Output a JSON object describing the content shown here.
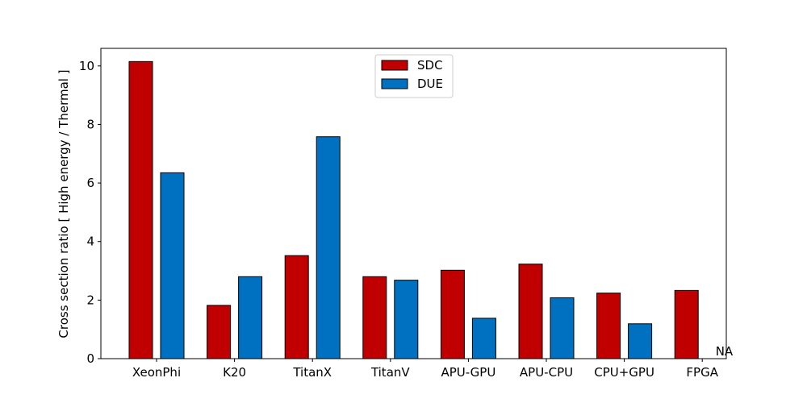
{
  "chart_data": {
    "type": "bar",
    "title": "",
    "xlabel": "",
    "ylabel": "Cross section ratio [ High energy / Thermal ]",
    "ylim": [
      0,
      10.6
    ],
    "yticks": [
      "0",
      "2",
      "4",
      "6",
      "8",
      "10"
    ],
    "grid": false,
    "legend_placement": "top-center",
    "categories": [
      "XeonPhi",
      "K20",
      "TitanX",
      "TitanV",
      "APU-GPU",
      "APU-CPU",
      "CPU+GPU",
      "FPGA"
    ],
    "series": [
      {
        "name": "SDC",
        "color": "#c00000",
        "values": [
          10.15,
          1.82,
          3.52,
          2.8,
          3.02,
          3.23,
          2.24,
          2.33
        ]
      },
      {
        "name": "DUE",
        "color": "#0070c0",
        "values": [
          6.35,
          2.8,
          7.58,
          2.68,
          1.38,
          2.08,
          1.19,
          null
        ]
      }
    ],
    "annotations": [
      {
        "category": "FPGA",
        "series": "DUE",
        "text": "NA"
      }
    ]
  }
}
